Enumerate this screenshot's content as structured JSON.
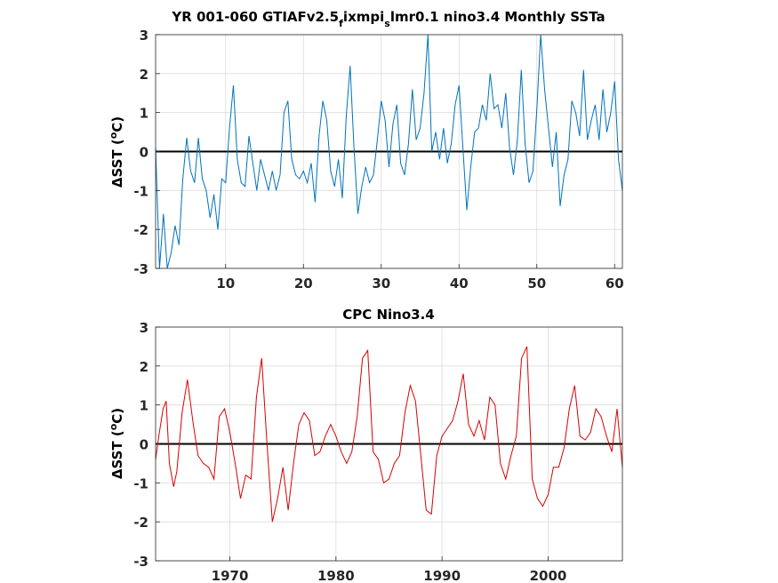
{
  "chart_data": [
    {
      "type": "line",
      "title": "YR 001-060 GTIAFv2.5",
      "title_subscript_1": "f",
      "title_middle": "ixmpi",
      "title_subscript_2": "s",
      "title_end": "lmr0.1 nino3.4 Monthly SSTa",
      "xlabel": "",
      "ylabel": "ΔSST (",
      "ylabel_sup": "o",
      "ylabel_end": "C)",
      "xlim": [
        1,
        61
      ],
      "ylim": [
        -3,
        3
      ],
      "xticks": [
        10,
        20,
        30,
        40,
        50,
        60
      ],
      "yticks": [
        -3,
        -2,
        -1,
        0,
        1,
        2,
        3
      ],
      "grid": true,
      "zero_line": true,
      "series_color": "#0072bd",
      "x": [
        1,
        1.5,
        2,
        2.5,
        3,
        3.5,
        4,
        4.5,
        5,
        5.5,
        6,
        6.5,
        7,
        7.5,
        8,
        8.5,
        9,
        9.5,
        10,
        10.5,
        11,
        11.5,
        12,
        12.5,
        13,
        13.5,
        14,
        14.5,
        15,
        15.5,
        16,
        16.5,
        17,
        17.5,
        18,
        18.5,
        19,
        19.5,
        20,
        20.5,
        21,
        21.5,
        22,
        22.5,
        23,
        23.5,
        24,
        24.5,
        25,
        25.5,
        26,
        26.5,
        27,
        27.5,
        28,
        28.5,
        29,
        29.5,
        30,
        30.5,
        31,
        31.5,
        32,
        32.5,
        33,
        33.5,
        34,
        34.5,
        35,
        35.5,
        36,
        36.5,
        37,
        37.5,
        38,
        38.5,
        39,
        39.5,
        40,
        40.5,
        41,
        41.5,
        42,
        42.5,
        43,
        43.5,
        44,
        44.5,
        45,
        45.5,
        46,
        46.5,
        47,
        47.5,
        48,
        48.5,
        49,
        49.5,
        50,
        50.5,
        51,
        51.5,
        52,
        52.5,
        53,
        53.5,
        54,
        54.5,
        55,
        55.5,
        56,
        56.5,
        57,
        57.5,
        58,
        58.5,
        59,
        59.5,
        60,
        60.5,
        61
      ],
      "values": [
        0.1,
        -3.0,
        -1.6,
        -3.0,
        -2.6,
        -1.9,
        -2.4,
        -0.7,
        0.35,
        -0.5,
        -0.8,
        0.35,
        -0.7,
        -1.0,
        -1.7,
        -1.1,
        -2.0,
        -0.7,
        -0.8,
        0.6,
        1.7,
        -0.2,
        -0.8,
        -0.9,
        0.4,
        -0.3,
        -1.0,
        -0.2,
        -0.6,
        -1.0,
        -0.5,
        -1.0,
        -0.6,
        1.0,
        1.3,
        -0.2,
        -0.6,
        -0.7,
        -0.5,
        -0.8,
        -0.3,
        -1.3,
        0.4,
        1.3,
        0.8,
        -0.5,
        -0.9,
        -0.2,
        -1.2,
        0.9,
        2.2,
        0.1,
        -1.6,
        -0.9,
        -0.4,
        -0.8,
        -0.6,
        0.3,
        1.3,
        0.8,
        -0.4,
        0.7,
        1.2,
        -0.3,
        -0.6,
        0.2,
        1.6,
        0.3,
        0.6,
        1.5,
        3.0,
        0.0,
        0.5,
        -0.2,
        0.6,
        -0.3,
        0.2,
        1.2,
        1.7,
        0.1,
        -1.5,
        -0.4,
        0.5,
        0.6,
        1.2,
        0.8,
        2.0,
        1.1,
        1.2,
        0.6,
        1.5,
        0.1,
        -0.6,
        0.3,
        2.1,
        0.2,
        -0.8,
        -0.5,
        1.1,
        3.0,
        1.6,
        0.6,
        -0.4,
        0.5,
        -1.4,
        -0.6,
        -0.2,
        1.3,
        1.0,
        0.4,
        2.1,
        0.3,
        0.8,
        1.2,
        0.3,
        1.6,
        0.5,
        1.0,
        1.8,
        -0.2,
        -1.0
      ]
    },
    {
      "type": "line",
      "title": "CPC Nino3.4",
      "xlabel": "",
      "ylabel": "ΔSST (",
      "ylabel_sup": "o",
      "ylabel_end": "C)",
      "xlim": [
        1963,
        2007
      ],
      "ylim": [
        -3,
        3
      ],
      "xticks": [
        1970,
        1980,
        1990,
        2000
      ],
      "yticks": [
        -3,
        -2,
        -1,
        0,
        1,
        2,
        3
      ],
      "grid": true,
      "zero_line": true,
      "series_color": "#d90000",
      "x": [
        1963.0,
        1963.3,
        1963.7,
        1964.0,
        1964.3,
        1964.7,
        1965.0,
        1965.5,
        1966.0,
        1966.5,
        1967.0,
        1967.5,
        1968.0,
        1968.5,
        1969.0,
        1969.5,
        1970.0,
        1970.5,
        1971.0,
        1971.5,
        1972.0,
        1972.5,
        1973.0,
        1973.5,
        1974.0,
        1974.5,
        1975.0,
        1975.5,
        1976.0,
        1976.5,
        1977.0,
        1977.5,
        1978.0,
        1978.5,
        1979.0,
        1979.5,
        1980.0,
        1980.5,
        1981.0,
        1981.5,
        1982.0,
        1982.5,
        1983.0,
        1983.5,
        1984.0,
        1984.5,
        1985.0,
        1985.5,
        1986.0,
        1986.5,
        1987.0,
        1987.5,
        1988.0,
        1988.5,
        1989.0,
        1989.5,
        1990.0,
        1990.5,
        1991.0,
        1991.5,
        1992.0,
        1992.5,
        1993.0,
        1993.5,
        1994.0,
        1994.5,
        1995.0,
        1995.5,
        1996.0,
        1996.5,
        1997.0,
        1997.5,
        1998.0,
        1998.5,
        1999.0,
        1999.5,
        2000.0,
        2000.5,
        2001.0,
        2001.5,
        2002.0,
        2002.5,
        2003.0,
        2003.5,
        2004.0,
        2004.5,
        2005.0,
        2005.5,
        2006.0,
        2006.5,
        2007.0
      ],
      "values": [
        -0.4,
        0.2,
        0.9,
        1.1,
        -0.5,
        -1.1,
        -0.7,
        0.8,
        1.65,
        0.6,
        -0.3,
        -0.5,
        -0.6,
        -0.9,
        0.7,
        0.9,
        0.3,
        -0.5,
        -1.4,
        -0.8,
        -0.9,
        1.2,
        2.2,
        0.0,
        -2.0,
        -1.4,
        -0.6,
        -1.7,
        -0.5,
        0.5,
        0.8,
        0.6,
        -0.3,
        -0.2,
        0.2,
        0.5,
        0.2,
        -0.2,
        -0.5,
        -0.2,
        0.7,
        2.2,
        2.4,
        -0.2,
        -0.4,
        -1.0,
        -0.9,
        -0.5,
        -0.3,
        0.8,
        1.5,
        1.1,
        -0.3,
        -1.7,
        -1.8,
        -0.3,
        0.2,
        0.4,
        0.6,
        1.1,
        1.8,
        0.5,
        0.2,
        0.6,
        0.1,
        1.2,
        1.0,
        -0.5,
        -0.9,
        -0.3,
        0.2,
        2.2,
        2.5,
        -0.9,
        -1.4,
        -1.6,
        -1.3,
        -0.6,
        -0.6,
        -0.1,
        0.9,
        1.5,
        0.2,
        0.1,
        0.3,
        0.9,
        0.7,
        0.2,
        -0.2,
        0.9,
        -0.6
      ]
    }
  ]
}
